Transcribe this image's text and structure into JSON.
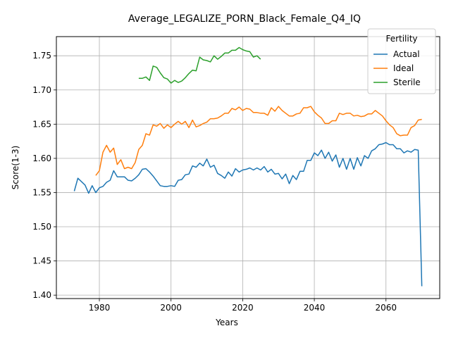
{
  "chart_data": {
    "type": "line",
    "title": "Average_LEGALIZE_PORN_Black_Female_Q4_IQ",
    "xlabel": "Years",
    "ylabel": "Score(1-3)",
    "xlim": [
      1968,
      2075
    ],
    "ylim": [
      1.395,
      1.778
    ],
    "xticks": [
      1980,
      2000,
      2020,
      2040,
      2060
    ],
    "yticks": [
      1.4,
      1.45,
      1.5,
      1.55,
      1.6,
      1.65,
      1.7,
      1.75
    ],
    "xtick_labels": [
      "1980",
      "2000",
      "2020",
      "2040",
      "2060"
    ],
    "ytick_labels": [
      "1.40",
      "1.45",
      "1.50",
      "1.55",
      "1.60",
      "1.65",
      "1.70",
      "1.75"
    ],
    "grid": true,
    "legend": {
      "title": "Fertility",
      "placement": "top-right"
    },
    "series": [
      {
        "name": "Actual",
        "color": "#1f77b4",
        "x": [
          1973,
          1974,
          1975,
          1976,
          1977,
          1978,
          1979,
          1980,
          1981,
          1982,
          1983,
          1984,
          1985,
          1986,
          1987,
          1988,
          1989,
          1990,
          1991,
          1992,
          1993,
          1994,
          1995,
          1996,
          1997,
          1998,
          1999,
          2000,
          2001,
          2002,
          2003,
          2004,
          2005,
          2006,
          2007,
          2008,
          2009,
          2010,
          2011,
          2012,
          2013,
          2014,
          2015,
          2016,
          2017,
          2018,
          2019,
          2020,
          2021,
          2022,
          2023,
          2024,
          2025,
          2026,
          2027,
          2028,
          2029,
          2030,
          2031,
          2032,
          2033,
          2034,
          2035,
          2036,
          2037,
          2038,
          2039,
          2040,
          2041,
          2042,
          2043,
          2044,
          2045,
          2046,
          2047,
          2048,
          2049,
          2050,
          2051,
          2052,
          2053,
          2054,
          2055,
          2056,
          2057,
          2058,
          2059,
          2060,
          2061,
          2062,
          2063,
          2064,
          2065,
          2066,
          2067,
          2068,
          2069,
          2070
        ],
        "values": [
          1.552,
          1.571,
          1.566,
          1.561,
          1.549,
          1.56,
          1.55,
          1.557,
          1.559,
          1.565,
          1.568,
          1.582,
          1.573,
          1.573,
          1.573,
          1.568,
          1.567,
          1.571,
          1.576,
          1.584,
          1.585,
          1.58,
          1.574,
          1.567,
          1.56,
          1.559,
          1.559,
          1.56,
          1.559,
          1.568,
          1.569,
          1.576,
          1.577,
          1.589,
          1.587,
          1.593,
          1.589,
          1.599,
          1.587,
          1.59,
          1.578,
          1.575,
          1.571,
          1.58,
          1.574,
          1.585,
          1.58,
          1.583,
          1.584,
          1.586,
          1.583,
          1.586,
          1.583,
          1.588,
          1.58,
          1.584,
          1.577,
          1.578,
          1.57,
          1.577,
          1.563,
          1.575,
          1.569,
          1.581,
          1.581,
          1.597,
          1.597,
          1.608,
          1.604,
          1.612,
          1.6,
          1.609,
          1.596,
          1.605,
          1.587,
          1.6,
          1.584,
          1.6,
          1.584,
          1.601,
          1.589,
          1.604,
          1.6,
          1.611,
          1.614,
          1.62,
          1.621,
          1.623,
          1.62,
          1.62,
          1.614,
          1.614,
          1.608,
          1.611,
          1.609,
          1.613,
          1.612,
          1.413
        ]
      },
      {
        "name": "Ideal",
        "color": "#ff7f0e",
        "x": [
          1979,
          1980,
          1981,
          1982,
          1983,
          1984,
          1985,
          1986,
          1987,
          1988,
          1989,
          1990,
          1991,
          1992,
          1993,
          1994,
          1995,
          1996,
          1997,
          1998,
          1999,
          2000,
          2001,
          2002,
          2003,
          2004,
          2005,
          2006,
          2007,
          2008,
          2009,
          2010,
          2011,
          2012,
          2013,
          2014,
          2015,
          2016,
          2017,
          2018,
          2019,
          2020,
          2021,
          2022,
          2023,
          2024,
          2025,
          2026,
          2027,
          2028,
          2029,
          2030,
          2031,
          2032,
          2033,
          2034,
          2035,
          2036,
          2037,
          2038,
          2039,
          2040,
          2041,
          2042,
          2043,
          2044,
          2045,
          2046,
          2047,
          2048,
          2049,
          2050,
          2051,
          2052,
          2053,
          2054,
          2055,
          2056,
          2057,
          2058,
          2059,
          2060,
          2061,
          2062,
          2063,
          2064,
          2065,
          2066,
          2067,
          2068,
          2069,
          2070
        ],
        "values": [
          1.575,
          1.582,
          1.609,
          1.619,
          1.609,
          1.615,
          1.591,
          1.598,
          1.585,
          1.587,
          1.585,
          1.594,
          1.613,
          1.619,
          1.636,
          1.634,
          1.649,
          1.647,
          1.651,
          1.644,
          1.649,
          1.645,
          1.65,
          1.654,
          1.65,
          1.654,
          1.645,
          1.656,
          1.646,
          1.648,
          1.651,
          1.653,
          1.658,
          1.658,
          1.659,
          1.662,
          1.666,
          1.666,
          1.673,
          1.671,
          1.675,
          1.67,
          1.673,
          1.672,
          1.667,
          1.667,
          1.666,
          1.666,
          1.663,
          1.674,
          1.669,
          1.676,
          1.67,
          1.666,
          1.662,
          1.662,
          1.665,
          1.666,
          1.674,
          1.674,
          1.676,
          1.668,
          1.663,
          1.659,
          1.651,
          1.651,
          1.655,
          1.655,
          1.666,
          1.664,
          1.666,
          1.666,
          1.662,
          1.663,
          1.661,
          1.662,
          1.665,
          1.665,
          1.67,
          1.666,
          1.662,
          1.655,
          1.649,
          1.645,
          1.636,
          1.633,
          1.634,
          1.634,
          1.645,
          1.648,
          1.656,
          1.657
        ]
      },
      {
        "name": "Sterile",
        "color": "#2ca02c",
        "x": [
          1991,
          1992,
          1993,
          1994,
          1995,
          1996,
          1997,
          1998,
          1999,
          2000,
          2001,
          2002,
          2003,
          2004,
          2005,
          2006,
          2007,
          2008,
          2009,
          2010,
          2011,
          2012,
          2013,
          2014,
          2015,
          2016,
          2017,
          2018,
          2019,
          2020,
          2021,
          2022,
          2023,
          2024,
          2025
        ],
        "values": [
          1.717,
          1.717,
          1.719,
          1.714,
          1.735,
          1.733,
          1.725,
          1.718,
          1.716,
          1.71,
          1.714,
          1.711,
          1.713,
          1.718,
          1.724,
          1.729,
          1.728,
          1.748,
          1.744,
          1.743,
          1.741,
          1.75,
          1.745,
          1.749,
          1.754,
          1.754,
          1.758,
          1.758,
          1.762,
          1.759,
          1.757,
          1.756,
          1.748,
          1.75,
          1.745
        ]
      }
    ]
  }
}
